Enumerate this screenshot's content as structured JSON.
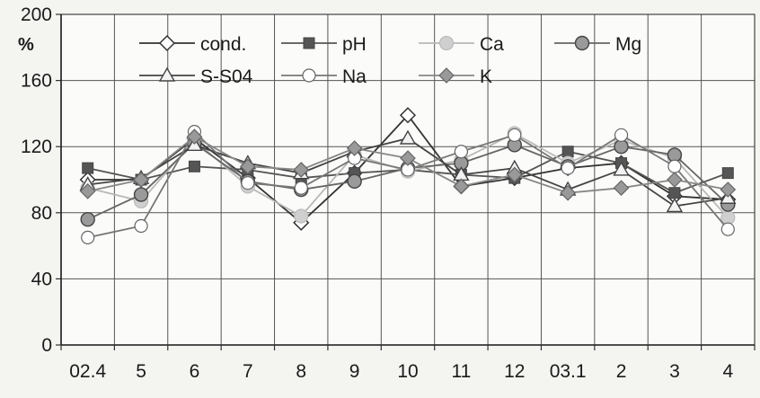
{
  "chart_data": {
    "type": "line",
    "title": "",
    "xlabel": "",
    "ylabel": "%",
    "ylim": [
      0,
      200
    ],
    "yticks": [
      0,
      40,
      80,
      120,
      160,
      200
    ],
    "grid": true,
    "legend_position": "top",
    "categories": [
      "02.4",
      "5",
      "6",
      "7",
      "8",
      "9",
      "10",
      "11",
      "12",
      "03.1",
      "2",
      "3",
      "4"
    ],
    "series": [
      {
        "name": "cond.",
        "marker": "diamond-open",
        "color": "#333333",
        "values": [
          100,
          100,
          125,
          101,
          74,
          104,
          139,
          96,
          101,
          107,
          110,
          90,
          88
        ]
      },
      {
        "name": "pH",
        "marker": "square-filled",
        "color": "#555555",
        "values": [
          107,
          100,
          108,
          106,
          101,
          104,
          106,
          103,
          101,
          117,
          110,
          92,
          104
        ]
      },
      {
        "name": "Ca",
        "marker": "circle-light",
        "color": "#b8b8b8",
        "values": [
          95,
          87,
          124,
          96,
          78,
          115,
          105,
          112,
          128,
          110,
          124,
          113,
          77
        ]
      },
      {
        "name": "Mg",
        "marker": "circle-gray",
        "color": "#666666",
        "values": [
          76,
          91,
          122,
          99,
          94,
          99,
          107,
          110,
          121,
          108,
          120,
          115,
          85
        ]
      },
      {
        "name": "S-S04",
        "marker": "triangle-open",
        "color": "#444444",
        "values": [
          97,
          101,
          121,
          110,
          104,
          117,
          125,
          103,
          107,
          94,
          106,
          84,
          89
        ]
      },
      {
        "name": "Na",
        "marker": "circle-open",
        "color": "#777777",
        "values": [
          65,
          72,
          129,
          98,
          95,
          113,
          106,
          117,
          127,
          107,
          127,
          108,
          70
        ]
      },
      {
        "name": "K",
        "marker": "diamond-gray",
        "color": "#888888",
        "values": [
          93,
          100,
          126,
          108,
          106,
          119,
          113,
          96,
          103,
          92,
          95,
          100,
          94
        ]
      }
    ]
  }
}
